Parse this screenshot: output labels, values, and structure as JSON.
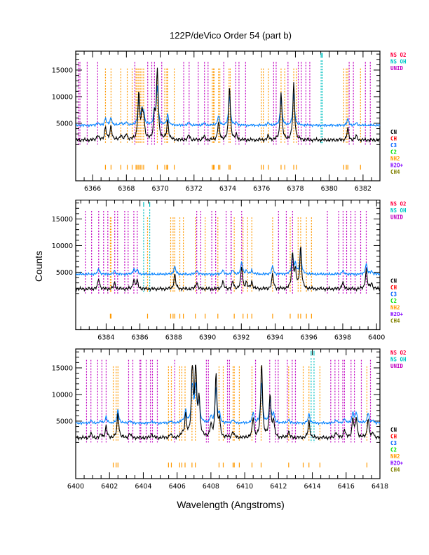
{
  "chart_data": {
    "type": "line",
    "title": "122P/deVico Order 54 (part b)",
    "xlabel": "Wavelength (Angstroms)",
    "ylabel": "Counts",
    "ylim": [
      -5800,
      18550
    ],
    "yticks": [
      5000,
      10000,
      15000
    ],
    "legend_top": [
      {
        "label": "NS O2",
        "color": "#ff0040"
      },
      {
        "label": "NS OH",
        "color": "#00c8c8"
      },
      {
        "label": "UNID",
        "color": "#c000c0"
      }
    ],
    "legend_bottom": [
      {
        "label": "CN",
        "color": "#000000"
      },
      {
        "label": "CH",
        "color": "#ff0000"
      },
      {
        "label": "C3",
        "color": "#0060ff"
      },
      {
        "label": "C2",
        "color": "#00e000"
      },
      {
        "label": "NH2",
        "color": "#ff9900"
      },
      {
        "label": "H2O+",
        "color": "#8000ff"
      },
      {
        "label": "CH4",
        "color": "#808000"
      }
    ],
    "series_colors": {
      "spectrum": "#000000",
      "smoothed_offset": "#0080ff",
      "unid": "#c000c0",
      "nh2": "#ff9900",
      "ns_oh": "#00c0c0"
    },
    "panels": [
      {
        "xlim": [
          6365,
          6383
        ],
        "xticks": [
          6366,
          6368,
          6370,
          6372,
          6374,
          6376,
          6378,
          6380,
          6382
        ],
        "unid_lines": [
          6365.15,
          6365.25,
          6365.68,
          6366.3,
          6368.5,
          6369.26,
          6369.5,
          6369.66,
          6370.09,
          6371.39,
          6371.71,
          6372.25,
          6372.62,
          6372.83,
          6373.76,
          6374.47,
          6374.66,
          6375.05,
          6376.71,
          6376.86,
          6377.56,
          6378.17,
          6378.35,
          6378.62,
          6378.85,
          6381.18,
          6381.43,
          6382.14,
          6382.43
        ],
        "nh2_lines": [
          6366.76,
          6367.09,
          6367.67,
          6368.05,
          6368.34,
          6368.57,
          6368.64,
          6368.73,
          6368.82,
          6368.92,
          6369.02,
          6369.83,
          6370.27,
          6370.39,
          6370.44,
          6370.83,
          6373.08,
          6373.15,
          6373.19,
          6373.45,
          6373.53,
          6374.07,
          6374.14,
          6375.98,
          6376.1,
          6376.4,
          6377.15,
          6377.37,
          6377.9,
          6378.06,
          6380.86,
          6381.01,
          6381.1,
          6381.85
        ],
        "ns_oh_lines": [
          6379.52,
          6379.59
        ],
        "peaks": [
          [
            6366.3,
            2800
          ],
          [
            6366.76,
            4300
          ],
          [
            6367.09,
            4500
          ],
          [
            6367.67,
            2800
          ],
          [
            6368.0,
            3000
          ],
          [
            6368.73,
            10500
          ],
          [
            6368.92,
            6000
          ],
          [
            6369.02,
            5800
          ],
          [
            6369.66,
            6500
          ],
          [
            6369.83,
            15000
          ],
          [
            6370.44,
            5500
          ],
          [
            6371.7,
            2800
          ],
          [
            6372.6,
            2600
          ],
          [
            6373.45,
            5200
          ],
          [
            6374.1,
            12000
          ],
          [
            6374.5,
            2700
          ],
          [
            6376.4,
            2600
          ],
          [
            6377.15,
            11000
          ],
          [
            6377.9,
            12500
          ],
          [
            6381.1,
            4000
          ],
          [
            6381.6,
            2600
          ]
        ]
      },
      {
        "xlim": [
          6382.2,
          6400.2
        ],
        "xticks": [
          6384,
          6386,
          6388,
          6390,
          6392,
          6394,
          6396,
          6398,
          6400
        ],
        "unid_lines": [
          6382.77,
          6383.14,
          6383.56,
          6383.85,
          6384.1,
          6384.51,
          6384.68,
          6385.1,
          6385.3,
          6385.64,
          6385.84,
          6389.36,
          6389.6,
          6390.25,
          6390.48,
          6391.1,
          6391.39,
          6391.4,
          6392.02,
          6394.2,
          6394.66,
          6395.03,
          6397.09,
          6397.76,
          6398.02,
          6398.23,
          6398.48,
          6398.73,
          6399.06,
          6399.39
        ],
        "nh2_lines": [
          6384.25,
          6384.29,
          6386.45,
          6387.82,
          6387.96,
          6388.06,
          6388.36,
          6388.57,
          6389.28,
          6389.86,
          6390.61,
          6391.58,
          6392.1,
          6392.37,
          6392.62,
          6393.85,
          6394.89,
          6395.36,
          6395.51,
          6395.85,
          6396.15
        ],
        "ns_oh_lines": [
          6386.22,
          6386.58
        ],
        "peaks": [
          [
            6383.56,
            3800
          ],
          [
            6384.5,
            3000
          ],
          [
            6385.64,
            3700
          ],
          [
            6385.84,
            3300
          ],
          [
            6388.06,
            4600
          ],
          [
            6389.36,
            3200
          ],
          [
            6390.9,
            3300
          ],
          [
            6391.5,
            3200
          ],
          [
            6392.02,
            6000
          ],
          [
            6392.3,
            3000
          ],
          [
            6392.62,
            3200
          ],
          [
            6393.85,
            4600
          ],
          [
            6395.03,
            8500
          ],
          [
            6395.2,
            5000
          ],
          [
            6395.51,
            9800
          ],
          [
            6398.0,
            3200
          ],
          [
            6399.39,
            5500
          ],
          [
            6399.7,
            3000
          ]
        ]
      },
      {
        "xlim": [
          6400,
          6418
        ],
        "xticks": [
          6400,
          6402,
          6404,
          6406,
          6408,
          6410,
          6412,
          6414,
          6416,
          6418
        ],
        "unid_lines": [
          6400.64,
          6400.9,
          6401.3,
          6401.55,
          6401.8,
          6403.13,
          6403.38,
          6403.8,
          6403.85,
          6404.17,
          6404.42,
          6404.54,
          6404.83,
          6405.86,
          6407.73,
          6407.85,
          6408.98,
          6409.1,
          6410.64,
          6411.48,
          6411.81,
          6411.98,
          6412.52,
          6412.81,
          6413.0,
          6415.09,
          6415.34,
          6415.55,
          6415.8,
          6415.9,
          6416.29,
          6416.49,
          6416.9,
          6417.44
        ],
        "nh2_lines": [
          6402.22,
          6402.39,
          6402.5,
          6405.49,
          6405.66,
          6406.15,
          6406.28,
          6406.47,
          6406.88,
          6407.08,
          6408.48,
          6408.73,
          6409.31,
          6409.38,
          6409.68,
          6410.43,
          6410.97,
          6412.6,
          6413.46,
          6413.8,
          6414.45,
          6417.23
        ],
        "ns_oh_lines": [
          6413.93,
          6414.1
        ],
        "peaks": [
          [
            6400.9,
            2700
          ],
          [
            6401.5,
            2500
          ],
          [
            6401.8,
            4000
          ],
          [
            6402.5,
            6500
          ],
          [
            6403.2,
            2700
          ],
          [
            6404.5,
            2600
          ],
          [
            6405.6,
            2500
          ],
          [
            6406.3,
            2600
          ],
          [
            6406.5,
            6000
          ],
          [
            6406.9,
            16000
          ],
          [
            6407.1,
            16000
          ],
          [
            6407.3,
            9000
          ],
          [
            6408.0,
            4000
          ],
          [
            6408.3,
            14000
          ],
          [
            6408.5,
            5000
          ],
          [
            6409.3,
            3000
          ],
          [
            6410.5,
            5500
          ],
          [
            6411.0,
            16000
          ],
          [
            6411.5,
            10000
          ],
          [
            6411.7,
            5000
          ],
          [
            6412.6,
            3000
          ],
          [
            6413.8,
            5000
          ],
          [
            6415.4,
            3000
          ],
          [
            6415.9,
            3500
          ],
          [
            6416.4,
            5500
          ],
          [
            6416.6,
            5500
          ],
          [
            6417.3,
            5500
          ],
          [
            6417.6,
            2800
          ]
        ]
      }
    ]
  }
}
